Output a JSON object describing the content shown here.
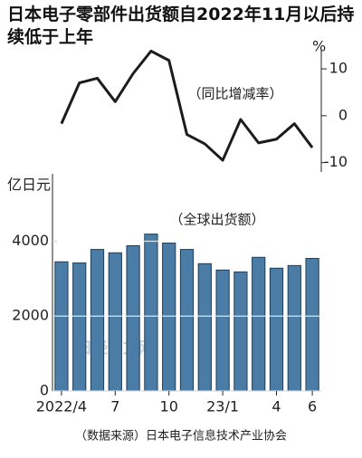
{
  "header": {
    "title": "日本电子零部件出货额自2022年11月以后持续低于上年"
  },
  "chart_data": [
    {
      "type": "line",
      "y_label": "%",
      "annotation": "（同比增减率）",
      "categories": [
        "2022/4",
        null,
        null,
        "7",
        null,
        null,
        "10",
        null,
        null,
        "23/1",
        null,
        null,
        "4",
        null,
        "6"
      ],
      "values": [
        -1.7,
        7,
        8,
        3,
        9,
        13.8,
        11.8,
        -4,
        -6,
        -9.5,
        -0.8,
        -5.8,
        -5,
        -1.7,
        -6.8
      ],
      "color": "#1c1c1c",
      "ylim": [
        -12,
        16
      ],
      "yticks": [
        -10,
        0,
        10
      ]
    },
    {
      "type": "bar",
      "y_label": "亿日元",
      "annotation": "（全球出货额）",
      "categories": [
        "2022/4",
        null,
        null,
        "7",
        null,
        null,
        "10",
        null,
        null,
        "23/1",
        null,
        null,
        "4",
        null,
        "6"
      ],
      "values": [
        3450,
        3420,
        3780,
        3690,
        3880,
        4190,
        3950,
        3780,
        3400,
        3230,
        3180,
        3570,
        3280,
        3350,
        3540
      ],
      "color": "#4a7ca6",
      "ylim": [
        0,
        5800
      ],
      "yticks": [
        0,
        2000,
        4000
      ],
      "grid": true
    }
  ],
  "watermark": "日经中文网",
  "footer": {
    "source": "（数据来源）日本电子信息技术产业协会"
  }
}
